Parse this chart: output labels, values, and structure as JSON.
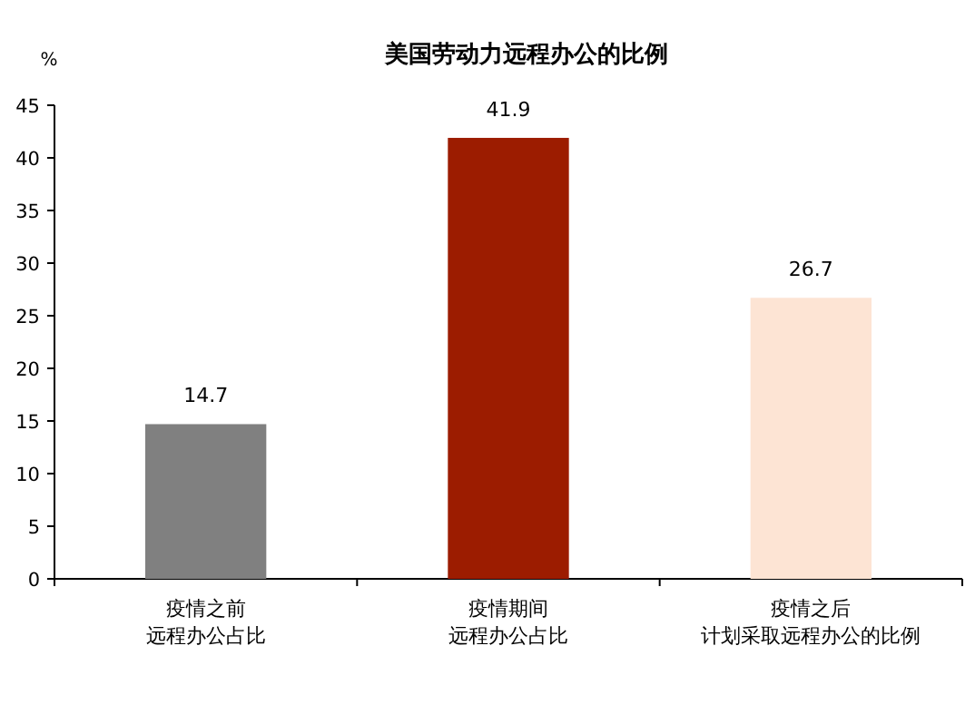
{
  "chart_data": {
    "type": "bar",
    "title": "美国劳动力远程办公的比例",
    "ylabel": "%",
    "categories": [
      "疫情之前远程办公占比",
      "疫情期间远程办公占比",
      "疫情之后计划采取远程办公的比例"
    ],
    "values": [
      14.7,
      41.9,
      26.7
    ],
    "colors": [
      "#808080",
      "#9c1c00",
      "#fde4d4"
    ],
    "ylim": [
      0,
      45
    ],
    "yticks": [
      0,
      5,
      10,
      15,
      20,
      25,
      30,
      35,
      40,
      45
    ],
    "data_labels": true,
    "grid": false
  }
}
